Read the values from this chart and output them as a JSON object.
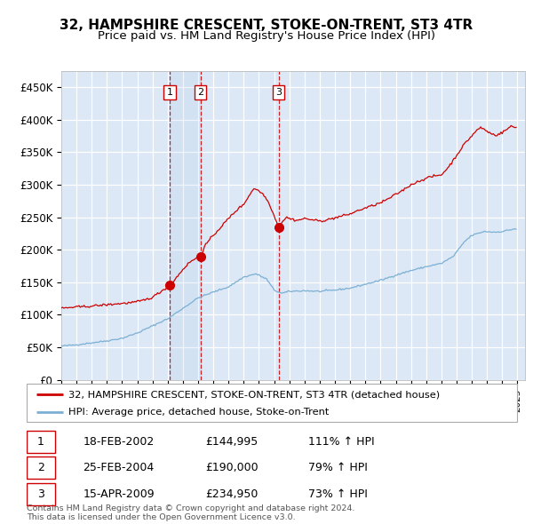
{
  "title": "32, HAMPSHIRE CRESCENT, STOKE-ON-TRENT, ST3 4TR",
  "subtitle": "Price paid vs. HM Land Registry's House Price Index (HPI)",
  "legend_line1": "32, HAMPSHIRE CRESCENT, STOKE-ON-TRENT, ST3 4TR (detached house)",
  "legend_line2": "HPI: Average price, detached house, Stoke-on-Trent",
  "footer1": "Contains HM Land Registry data © Crown copyright and database right 2024.",
  "footer2": "This data is licensed under the Open Government Licence v3.0.",
  "sale_color": "#cc0000",
  "hpi_color": "#7bafd4",
  "plot_bg": "#dce8f5",
  "grid_color": "#ffffff",
  "vline_color": "#cc0000",
  "sale_dates_num": [
    2002.134,
    2004.145,
    2009.288
  ],
  "sale_prices": [
    144995,
    190000,
    234950
  ],
  "sale_labels": [
    "1",
    "2",
    "3"
  ],
  "table": [
    [
      "1",
      "18-FEB-2002",
      "£144,995",
      "111% ↑ HPI"
    ],
    [
      "2",
      "25-FEB-2004",
      "£190,000",
      "79% ↑ HPI"
    ],
    [
      "3",
      "15-APR-2009",
      "£234,950",
      "73% ↑ HPI"
    ]
  ],
  "ylim": [
    0,
    475000
  ],
  "yticks": [
    0,
    50000,
    100000,
    150000,
    200000,
    250000,
    300000,
    350000,
    400000,
    450000
  ],
  "ytick_labels": [
    "£0",
    "£50K",
    "£100K",
    "£150K",
    "£200K",
    "£250K",
    "£300K",
    "£350K",
    "£400K",
    "£450K"
  ],
  "xstart": 1995.0,
  "xend": 2025.5
}
